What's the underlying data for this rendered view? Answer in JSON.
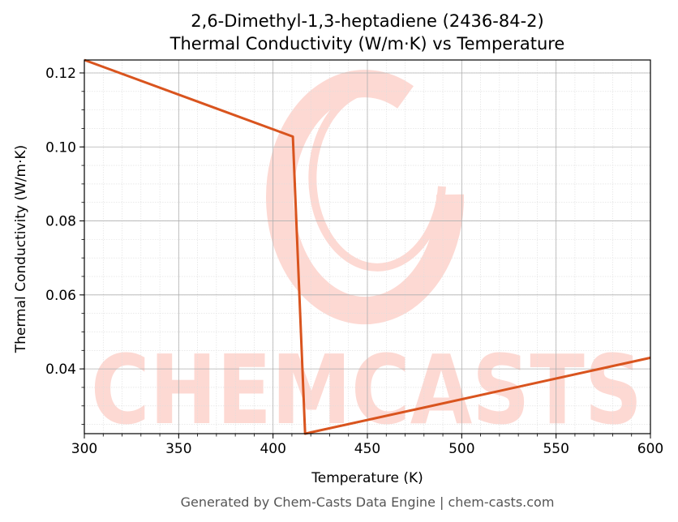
{
  "chart_data": {
    "type": "line",
    "title_line1": "2,6-Dimethyl-1,3-heptadiene (2436-84-2)",
    "title_line2": "Thermal Conductivity (W/m·K) vs Temperature",
    "xlabel": "Temperature (K)",
    "ylabel": "Thermal Conductivity (W/m·K)",
    "xlim": [
      300,
      600
    ],
    "ylim": [
      0.0225,
      0.1235
    ],
    "xticks": [
      300,
      350,
      400,
      450,
      500,
      550,
      600
    ],
    "yticks": [
      0.04,
      0.06,
      0.08,
      0.1,
      0.12
    ],
    "grid": true,
    "series": [
      {
        "color": "#d9541e",
        "x": [
          300,
          410.5,
          417,
          600
        ],
        "y": [
          0.1235,
          0.1028,
          0.0225,
          0.043
        ]
      }
    ]
  },
  "watermark": {
    "text": "CHEMCASTS",
    "color": "#fdd9d3"
  },
  "footer": "Generated by Chem-Casts Data Engine | chem-casts.com"
}
